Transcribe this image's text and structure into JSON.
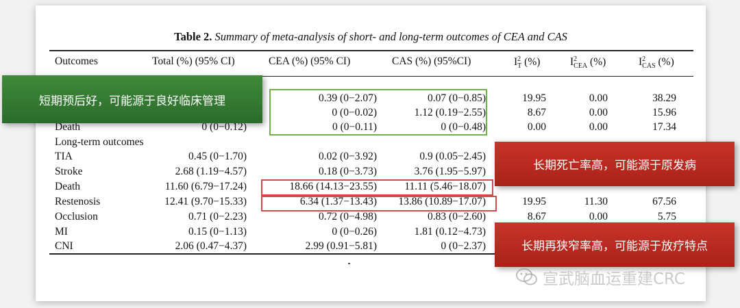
{
  "table": {
    "title_label": "Table 2.",
    "title_text": "Summary of meta-analysis of short- and long-term outcomes of CEA and CAS",
    "headers": {
      "outcomes": "Outcomes",
      "total": "Total (%) (95% CI)",
      "cea": "CEA (%) (95% CI)",
      "cas": "CAS (%) (95%CI)",
      "i2t": "I",
      "i2t_sup": "2",
      "i2t_sub": "T",
      "i2t_tail": " (%)",
      "i2cea": "I",
      "i2cea_sup": "2",
      "i2cea_sub": "CEA",
      "i2cea_tail": " (%)",
      "i2cas": "I",
      "i2cas_sup": "2",
      "i2cas_sub": "CAS",
      "i2cas_tail": " (%)"
    },
    "rows": [
      {
        "outcome": "",
        "total": "",
        "cea": "0.39 (0−2.07)",
        "cas": "0.07 (0−0.85)",
        "it": "19.95",
        "icea": "0.00",
        "icas": "38.29"
      },
      {
        "outcome": "",
        "total": "",
        "cea": "0 (0−0.02)",
        "cas": "1.12 (0.19−2.55)",
        "it": "8.67",
        "icea": "0.00",
        "icas": "15.96"
      },
      {
        "outcome": "Death",
        "total": "0 (0−0.12)",
        "cea": "0 (0−0.11)",
        "cas": "0 (0−0.48)",
        "it": "0.00",
        "icea": "0.00",
        "icas": "17.34"
      },
      {
        "outcome": "Long-term outcomes",
        "total": "",
        "cea": "",
        "cas": "",
        "it": "",
        "icea": "",
        "icas": ""
      },
      {
        "outcome": "TIA",
        "total": "0.45 (0−1.70)",
        "cea": "0.02 (0−3.92)",
        "cas": "0.9 (0.05−2.45)",
        "it": "",
        "icea": "",
        "icas": ""
      },
      {
        "outcome": "Stroke",
        "total": "2.68 (1.19−4.57)",
        "cea": "0.18 (0−3.73)",
        "cas": "3.76 (1.95−5.97)",
        "it": "",
        "icea": "",
        "icas": ""
      },
      {
        "outcome": "Death",
        "total": "11.60 (6.79−17.24)",
        "cea": "18.66 (14.13−23.55)",
        "cas": "11.11 (5.46−18.07)",
        "it": "",
        "icea": "",
        "icas": ""
      },
      {
        "outcome": "Restenosis",
        "total": "12.41 (9.70−15.33)",
        "cea": "6.34 (1.37−13.43)",
        "cas": "13.86 (10.89−17.07)",
        "it": "19.95",
        "icea": "11.30",
        "icas": "67.56"
      },
      {
        "outcome": "Occlusion",
        "total": "0.71 (0−2.23)",
        "cea": "0.72 (0−4.98)",
        "cas": "0.83 (0−2.60)",
        "it": "8.67",
        "icea": "0.00",
        "icas": "5.75"
      },
      {
        "outcome": "MI",
        "total": "0.15 (0−1.13)",
        "cea": "0 (0−0.26)",
        "cas": "1.81 (0.12−4.73)",
        "it": "",
        "icea": "",
        "icas": ""
      },
      {
        "outcome": "CNI",
        "total": "2.06 (0.47−4.37)",
        "cea": "2.99 (0.91−5.81)",
        "cas": "0 (0−2.37)",
        "it": "",
        "icea": "",
        "icas": ""
      }
    ]
  },
  "annotations": {
    "green_callout": "短期预后好，可能源于良好临床管理",
    "red_callout_1": "长期死亡率高，可能源于原发病",
    "red_callout_2": "长期再狭窄率高，可能源于放疗特点"
  },
  "watermark": {
    "text": "宣武脑血运重建CRC",
    "icon": "wechat-icon"
  },
  "colors": {
    "green_box": "#6fb24a",
    "red_box": "#d24b4b",
    "green_callout": "#3f8a3a",
    "red_callout": "#c8332a"
  }
}
